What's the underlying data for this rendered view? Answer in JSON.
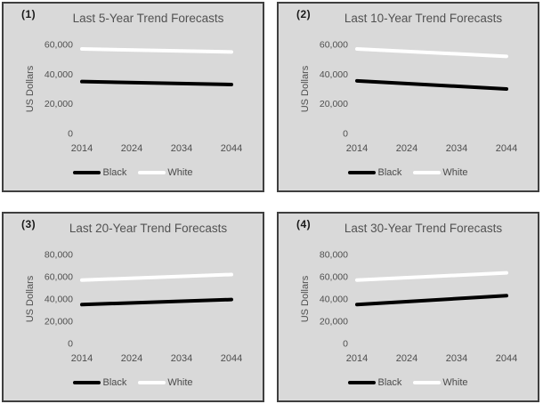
{
  "page": {
    "background": "#ffffff",
    "panel_background": "#d9d9d9",
    "panel_border_color": "#3f3f3f",
    "text_color": "#4f4f4f"
  },
  "chart_data": [
    {
      "index_label": "(1)",
      "type": "line",
      "title": "Last 5-Year Trend Forecasts",
      "ylabel": "US Dollars",
      "x": [
        2014,
        2044
      ],
      "x_ticks": [
        "2014",
        "2024",
        "2034",
        "2044"
      ],
      "y_ticks": [
        0,
        20000,
        40000,
        60000
      ],
      "ylim": [
        0,
        60000
      ],
      "grid": false,
      "legend_position": "bottom",
      "series": [
        {
          "name": "Black",
          "color": "#000000",
          "values": [
            35000,
            33000
          ]
        },
        {
          "name": "White",
          "color": "#ffffff",
          "values": [
            57000,
            55000
          ]
        }
      ]
    },
    {
      "index_label": "(2)",
      "type": "line",
      "title": "Last 10-Year Trend Forecasts",
      "ylabel": "US Dollars",
      "x": [
        2014,
        2044
      ],
      "x_ticks": [
        "2014",
        "2024",
        "2034",
        "2044"
      ],
      "y_ticks": [
        0,
        20000,
        40000,
        60000
      ],
      "ylim": [
        0,
        60000
      ],
      "grid": false,
      "legend_position": "bottom",
      "series": [
        {
          "name": "Black",
          "color": "#000000",
          "values": [
            35500,
            30000
          ]
        },
        {
          "name": "White",
          "color": "#ffffff",
          "values": [
            57000,
            52000
          ]
        }
      ]
    },
    {
      "index_label": "(3)",
      "type": "line",
      "title": "Last 20-Year Trend Forecasts",
      "ylabel": "US Dollars",
      "x": [
        2014,
        2044
      ],
      "x_ticks": [
        "2014",
        "2024",
        "2034",
        "2044"
      ],
      "y_ticks": [
        0,
        20000,
        40000,
        60000,
        80000
      ],
      "ylim": [
        0,
        80000
      ],
      "grid": false,
      "legend_position": "bottom",
      "series": [
        {
          "name": "Black",
          "color": "#000000",
          "values": [
            35000,
            39500
          ]
        },
        {
          "name": "White",
          "color": "#ffffff",
          "values": [
            57000,
            62000
          ]
        }
      ]
    },
    {
      "index_label": "(4)",
      "type": "line",
      "title": "Last 30-Year Trend Forecasts",
      "ylabel": "US Dollars",
      "x": [
        2014,
        2044
      ],
      "x_ticks": [
        "2014",
        "2024",
        "2034",
        "2044"
      ],
      "y_ticks": [
        0,
        20000,
        40000,
        60000,
        80000
      ],
      "ylim": [
        0,
        80000
      ],
      "grid": false,
      "legend_position": "bottom",
      "series": [
        {
          "name": "Black",
          "color": "#000000",
          "values": [
            35000,
            43000
          ]
        },
        {
          "name": "White",
          "color": "#ffffff",
          "values": [
            57000,
            63500
          ]
        }
      ]
    }
  ]
}
